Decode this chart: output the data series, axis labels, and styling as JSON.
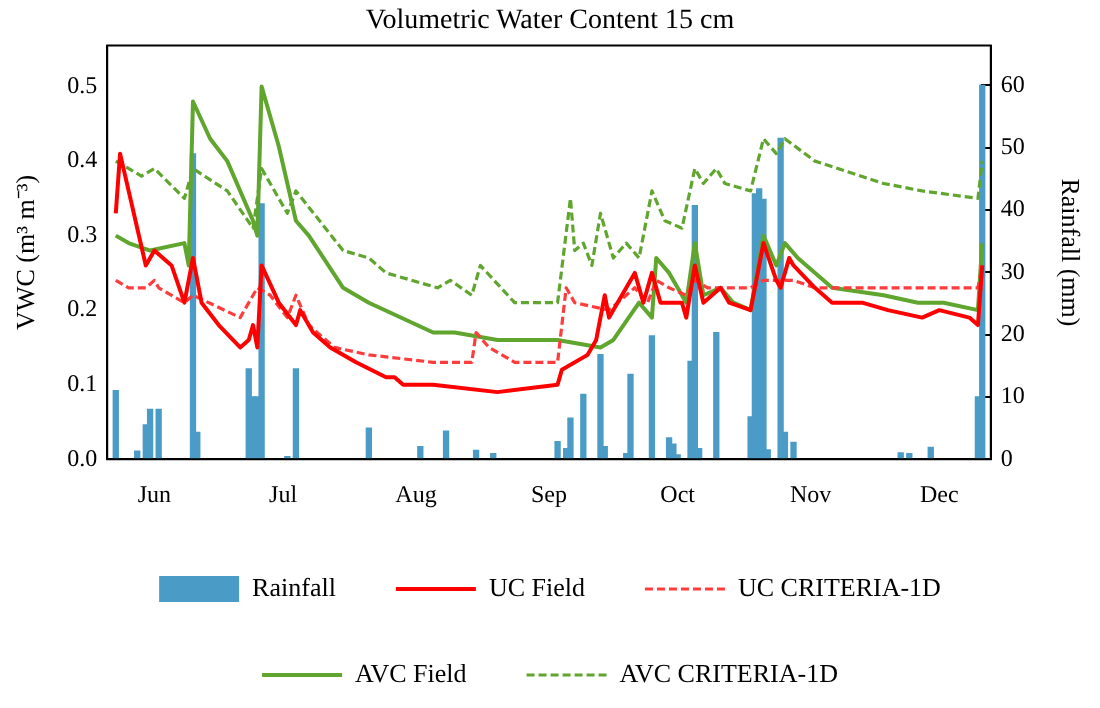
{
  "chart_data": {
    "type": "line",
    "title": "Volumetric Water Content 15 cm",
    "ylabel": "VWC (m³ m⁻³)",
    "y2label": "Rainfall (mm)",
    "xlim": [
      "--06-04",
      "--12-27"
    ],
    "xticks": [
      {
        "value": "--06-15",
        "label": "Jun"
      },
      {
        "value": "--07-15",
        "label": "Jul"
      },
      {
        "value": "--08-15",
        "label": "Aug"
      },
      {
        "value": "--09-15",
        "label": "Sep"
      },
      {
        "value": "--10-15",
        "label": "Oct"
      },
      {
        "value": "--11-15",
        "label": "Nov"
      },
      {
        "value": "--12-15",
        "label": "Dec"
      }
    ],
    "ylim": [
      0,
      0.555
    ],
    "yticks": [
      {
        "value": 0,
        "label": "0.0"
      },
      0.1,
      0.2,
      0.3,
      0.4,
      0.5
    ],
    "y2lim": [
      0,
      66.4
    ],
    "y2ticks": [
      0,
      10,
      20,
      30,
      40,
      50,
      60
    ],
    "legend": "bottom",
    "series": [
      {
        "name": "Rainfall",
        "type": "bar",
        "axis": "y2",
        "color": "#4a9cc7",
        "x": [
          "--06-06",
          "--06-11",
          "--06-13",
          "--06-14",
          "--06-16",
          "--06-24",
          "--06-25",
          "--07-07",
          "--07-08",
          "--07-09",
          "--07-10",
          "--07-16",
          "--07-18",
          "--08-04",
          "--08-16",
          "--08-22",
          "--08-29",
          "--09-02",
          "--09-17",
          "--09-19",
          "--09-20",
          "--09-23",
          "--09-27",
          "--09-28",
          "--10-03",
          "--10-04",
          "--10-09",
          "--10-13",
          "--10-14",
          "--10-15",
          "--10-18",
          "--10-19",
          "--10-20",
          "--10-24",
          "--11-01",
          "--11-02",
          "--11-03",
          "--11-04",
          "--11-05",
          "--11-08",
          "--11-09",
          "--11-11",
          "--12-06",
          "--12-08",
          "--12-13",
          "--12-24",
          "--12-25"
        ],
        "values": [
          11,
          1.3,
          5.5,
          8,
          8,
          49,
          4.3,
          14.5,
          10,
          10,
          41,
          0.4,
          14.5,
          5,
          2,
          4.5,
          1.4,
          0.9,
          2.8,
          1.7,
          6.6,
          10.4,
          16.8,
          2,
          0.9,
          13.6,
          19.8,
          3.4,
          2.4,
          0.7,
          15.7,
          40.7,
          1.7,
          20.3,
          6.8,
          42.6,
          43.4,
          41.7,
          1.5,
          51.5,
          4.3,
          2.7,
          1,
          0.9,
          1.9,
          10,
          60
        ]
      },
      {
        "name": "UC Field",
        "line_style": "solid",
        "color": "#ff0000",
        "x": [
          "--06-06",
          "--06-07",
          "--06-13",
          "--06-15",
          "--06-19",
          "--06-22",
          "--06-24",
          "--06-26",
          "--06-30",
          "--07-05",
          "--07-07",
          "--07-08",
          "--07-09",
          "--07-10",
          "--07-14",
          "--07-18",
          "--07-19",
          "--07-22",
          "--07-26",
          "--08-01",
          "--08-08",
          "--08-10",
          "--08-12",
          "--08-19",
          "--09-03",
          "--09-17",
          "--09-18",
          "--09-24",
          "--09-26",
          "--09-28",
          "--09-29",
          "--10-05",
          "--10-07",
          "--10-09",
          "--10-11",
          "--10-13",
          "--10-16",
          "--10-17",
          "--10-19",
          "--10-21",
          "--10-25",
          "--10-27",
          "--11-01",
          "--11-04",
          "--11-07",
          "--11-08",
          "--11-10",
          "--11-11",
          "--11-16",
          "--11-20",
          "--11-27",
          "--12-03",
          "--12-11",
          "--12-15",
          "--12-22",
          "--12-24",
          "--12-25"
        ],
        "values": [
          0.33,
          0.41,
          0.26,
          0.28,
          0.26,
          0.21,
          0.27,
          0.21,
          0.18,
          0.15,
          0.16,
          0.18,
          0.15,
          0.26,
          0.21,
          0.18,
          0.2,
          0.17,
          0.15,
          0.13,
          0.11,
          0.11,
          0.1,
          0.1,
          0.09,
          0.1,
          0.12,
          0.14,
          0.16,
          0.22,
          0.19,
          0.25,
          0.21,
          0.25,
          0.21,
          0.21,
          0.21,
          0.19,
          0.26,
          0.21,
          0.23,
          0.21,
          0.2,
          0.29,
          0.24,
          0.23,
          0.27,
          0.26,
          0.23,
          0.21,
          0.21,
          0.2,
          0.19,
          0.2,
          0.19,
          0.18,
          0.26
        ]
      },
      {
        "name": "UC CRITERIA-1D",
        "line_style": "dashed",
        "color": "#ff3b3b",
        "x": [
          "--06-06",
          "--06-09",
          "--06-13",
          "--06-15",
          "--06-16",
          "--06-22",
          "--06-24",
          "--07-05",
          "--07-09",
          "--07-12",
          "--07-16",
          "--07-18",
          "--07-21",
          "--07-27",
          "--08-04",
          "--08-19",
          "--08-25",
          "--08-28",
          "--08-29",
          "--09-01",
          "--09-07",
          "--09-17",
          "--09-19",
          "--09-21",
          "--09-29",
          "--10-05",
          "--10-08",
          "--10-10",
          "--10-13",
          "--10-17",
          "--10-19",
          "--10-22",
          "--10-27",
          "--11-01",
          "--11-04",
          "--11-11",
          "--11-16",
          "--12-02",
          "--12-24",
          "--12-25"
        ],
        "values": [
          0.24,
          0.23,
          0.23,
          0.24,
          0.23,
          0.21,
          0.22,
          0.19,
          0.23,
          0.22,
          0.19,
          0.22,
          0.18,
          0.15,
          0.14,
          0.13,
          0.13,
          0.13,
          0.17,
          0.15,
          0.13,
          0.13,
          0.23,
          0.21,
          0.2,
          0.23,
          0.21,
          0.24,
          0.23,
          0.22,
          0.24,
          0.23,
          0.23,
          0.23,
          0.24,
          0.24,
          0.23,
          0.23,
          0.23,
          0.26
        ]
      },
      {
        "name": "AVC Field",
        "line_style": "solid",
        "color": "#5fa52e",
        "x": [
          "--06-06",
          "--06-09",
          "--06-14",
          "--06-22",
          "--06-23",
          "--06-24",
          "--06-28",
          "--07-02",
          "--07-08",
          "--07-09",
          "--07-10",
          "--07-14",
          "--07-18",
          "--07-21",
          "--07-29",
          "--08-04",
          "--08-19",
          "--08-24",
          "--09-03",
          "--09-17",
          "--09-27",
          "--09-30",
          "--10-06",
          "--10-09",
          "--10-10",
          "--10-13",
          "--10-17",
          "--10-19",
          "--10-21",
          "--10-25",
          "--10-28",
          "--11-01",
          "--11-04",
          "--11-07",
          "--11-09",
          "--11-12",
          "--11-20",
          "--12-02",
          "--12-10",
          "--12-16",
          "--12-24",
          "--12-25"
        ],
        "values": [
          0.3,
          0.29,
          0.28,
          0.29,
          0.26,
          0.48,
          0.43,
          0.4,
          0.32,
          0.3,
          0.5,
          0.42,
          0.32,
          0.3,
          0.23,
          0.21,
          0.17,
          0.17,
          0.16,
          0.16,
          0.15,
          0.16,
          0.21,
          0.19,
          0.27,
          0.25,
          0.21,
          0.29,
          0.22,
          0.23,
          0.21,
          0.2,
          0.3,
          0.26,
          0.29,
          0.27,
          0.23,
          0.22,
          0.21,
          0.21,
          0.2,
          0.29
        ]
      },
      {
        "name": "AVC CRITERIA-1D",
        "line_style": "dashed",
        "color": "#5fa52e",
        "x": [
          "--06-06",
          "--06-12",
          "--06-15",
          "--06-22",
          "--06-24",
          "--07-02",
          "--07-08",
          "--07-10",
          "--07-16",
          "--07-18",
          "--07-29",
          "--08-04",
          "--08-08",
          "--08-20",
          "--08-23",
          "--08-28",
          "--08-30",
          "--09-07",
          "--09-17",
          "--09-20",
          "--09-21",
          "--09-23",
          "--09-25",
          "--09-27",
          "--09-30",
          "--10-03",
          "--10-06",
          "--10-09",
          "--10-12",
          "--10-16",
          "--10-19",
          "--10-21",
          "--10-24",
          "--10-26",
          "--11-01",
          "--11-04",
          "--11-07",
          "--11-09",
          "--11-16",
          "--12-02",
          "--12-11",
          "--12-24",
          "--12-25"
        ],
        "values": [
          0.4,
          0.38,
          0.39,
          0.35,
          0.39,
          0.36,
          0.31,
          0.39,
          0.33,
          0.36,
          0.28,
          0.27,
          0.25,
          0.23,
          0.24,
          0.22,
          0.26,
          0.21,
          0.21,
          0.35,
          0.28,
          0.29,
          0.26,
          0.33,
          0.27,
          0.29,
          0.27,
          0.36,
          0.32,
          0.31,
          0.39,
          0.37,
          0.39,
          0.37,
          0.36,
          0.43,
          0.41,
          0.43,
          0.4,
          0.37,
          0.36,
          0.35,
          0.4
        ]
      }
    ]
  }
}
